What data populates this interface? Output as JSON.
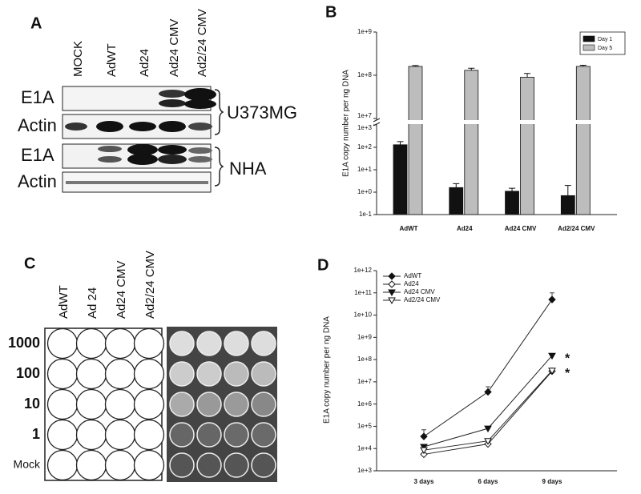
{
  "panel_a": {
    "label": "A",
    "lanes": [
      "MOCK",
      "AdWT",
      "Ad24",
      "Ad24 CMV",
      "Ad2/24 CMV"
    ],
    "rows": [
      "E1A",
      "Actin",
      "E1A",
      "Actin"
    ],
    "cell_lines": [
      "U373MG",
      "NHA"
    ]
  },
  "panel_c": {
    "label": "C",
    "columns": [
      "AdWT",
      "Ad 24",
      "Ad24 CMV",
      "Ad2/24 CMV"
    ],
    "rows": [
      "1000",
      "100",
      "10",
      "1",
      "Mock"
    ]
  },
  "chart_data": [
    {
      "type": "bar",
      "panel_label": "B",
      "y_label": "E1A copy number per ng DNA",
      "categories": [
        "AdWT",
        "Ad24",
        "Ad24 CMV",
        "Ad2/24 CMV"
      ],
      "series": [
        {
          "name": "Day 1",
          "color": "#111111",
          "values": [
            130,
            1.6,
            1.1,
            0.7
          ],
          "errors": [
            50,
            0.8,
            0.4,
            1.3
          ]
        },
        {
          "name": "Day 5",
          "color": "#bdbdbd",
          "values": [
            160000000,
            130000000,
            90000000,
            160000000
          ],
          "errors": [
            8000000,
            15000000,
            20000000,
            10000000
          ]
        }
      ],
      "log_scale": true,
      "ylim": [
        0.1,
        1000000000
      ],
      "axis_break": [
        1000,
        10000000
      ],
      "yticks": [
        {
          "value": 0.1,
          "label": "1e-1"
        },
        {
          "value": 1,
          "label": "1e+0"
        },
        {
          "value": 10,
          "label": "1e+1"
        },
        {
          "value": 100,
          "label": "1e+2"
        },
        {
          "value": 1000,
          "label": "1e+3"
        },
        {
          "value": 10000000,
          "label": "1e+7"
        },
        {
          "value": 100000000,
          "label": "1e+8"
        },
        {
          "value": 1000000000,
          "label": "1e+9"
        }
      ],
      "legend": "upper right"
    },
    {
      "type": "line",
      "panel_label": "D",
      "y_label": "E1A copy number per ng DNA",
      "categories": [
        "3 days",
        "6 days",
        "9 days"
      ],
      "series": [
        {
          "name": "AdWT",
          "color": "#222222",
          "marker": "diamond-filled",
          "values": [
            35000,
            3500000,
            50000000000
          ],
          "errors": [
            35000,
            2500000,
            50000000000
          ]
        },
        {
          "name": "Ad24",
          "color": "#222222",
          "marker": "diamond-open",
          "values": [
            5500,
            16000,
            30000000
          ]
        },
        {
          "name": "Ad24 CMV",
          "color": "#222222",
          "marker": "triangle-filled",
          "values": [
            12000,
            80000,
            150000000
          ]
        },
        {
          "name": "Ad2/24 CMV",
          "color": "#222222",
          "marker": "triangle-open",
          "values": [
            8500,
            22000,
            32000000
          ]
        }
      ],
      "annotations": [
        {
          "text": "*",
          "series": 2
        },
        {
          "text": "*",
          "series": 3
        }
      ],
      "log_scale": true,
      "ylim": [
        1000,
        1000000000000
      ],
      "yticks": [
        {
          "value": 1000,
          "label": "1e+3"
        },
        {
          "value": 10000,
          "label": "1e+4"
        },
        {
          "value": 100000,
          "label": "1e+5"
        },
        {
          "value": 1000000,
          "label": "1e+6"
        },
        {
          "value": 10000000,
          "label": "1e+7"
        },
        {
          "value": 100000000,
          "label": "1e+8"
        },
        {
          "value": 1000000000,
          "label": "1e+9"
        },
        {
          "value": 10000000000,
          "label": "1e+10"
        },
        {
          "value": 100000000000,
          "label": "1e+11"
        },
        {
          "value": 1000000000000,
          "label": "1e+12"
        }
      ],
      "legend": "upper left"
    }
  ]
}
